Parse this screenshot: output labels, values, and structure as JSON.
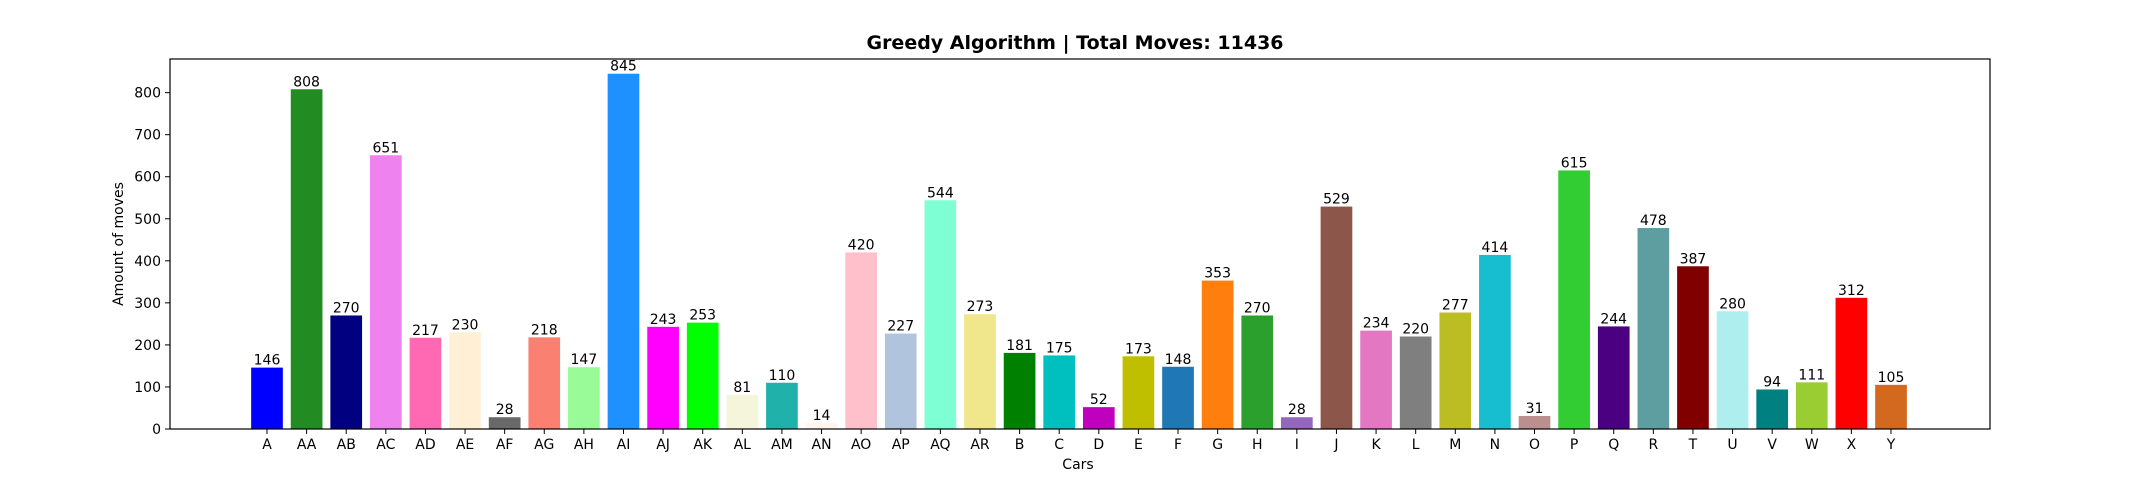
{
  "chart_data": {
    "type": "bar",
    "title": "Greedy Algorithm | Total Moves: 11436",
    "xlabel": "Cars",
    "ylabel": "Amount of moves",
    "ylim": [
      0,
      880
    ],
    "yticks": [
      0,
      100,
      200,
      300,
      400,
      500,
      600,
      700,
      800
    ],
    "grid": false,
    "categories": [
      "A",
      "AA",
      "AB",
      "AC",
      "AD",
      "AE",
      "AF",
      "AG",
      "AH",
      "AI",
      "AJ",
      "AK",
      "AL",
      "AM",
      "AN",
      "AO",
      "AP",
      "AQ",
      "AR",
      "B",
      "C",
      "D",
      "E",
      "F",
      "G",
      "H",
      "I",
      "J",
      "K",
      "L",
      "M",
      "N",
      "O",
      "P",
      "Q",
      "R",
      "T",
      "U",
      "V",
      "W",
      "X",
      "Y"
    ],
    "values": [
      146,
      808,
      270,
      651,
      217,
      230,
      28,
      218,
      147,
      845,
      243,
      253,
      81,
      110,
      14,
      420,
      227,
      544,
      273,
      181,
      175,
      52,
      173,
      148,
      353,
      270,
      28,
      529,
      234,
      220,
      277,
      414,
      31,
      615,
      244,
      478,
      387,
      280,
      94,
      111,
      312,
      105
    ],
    "colors": [
      "#0000ff",
      "#228b22",
      "#000080",
      "#ee82ee",
      "#ff69b4",
      "#fff0d5",
      "#696969",
      "#fa8072",
      "#98fb98",
      "#1e90ff",
      "#ff00ff",
      "#00ff00",
      "#f5f5dc",
      "#20b2aa",
      "#fff5ee",
      "#ffc0cb",
      "#b0c4de",
      "#7fffd4",
      "#f0e68c",
      "#008000",
      "#00bfbf",
      "#bf00bf",
      "#bfbf00",
      "#1f77b4",
      "#ff7f0e",
      "#2ca02c",
      "#9467bd",
      "#8c564b",
      "#e377c2",
      "#7f7f7f",
      "#bcbd22",
      "#17becf",
      "#bc8f8f",
      "#32cd32",
      "#4b0082",
      "#5f9ea0",
      "#800000",
      "#afeeee",
      "#008080",
      "#9acd32",
      "#ff0000",
      "#d2691e"
    ]
  }
}
